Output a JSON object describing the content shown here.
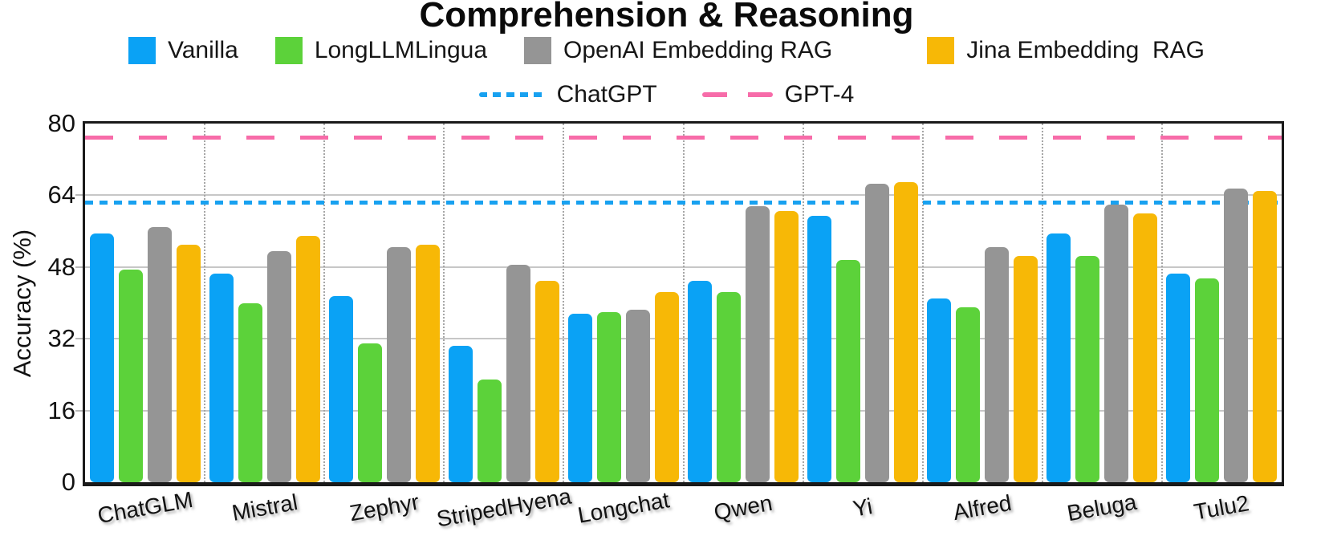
{
  "title": "Comprehension & Reasoning",
  "ylabel": "Accuracy (%)",
  "legend": {
    "series": [
      {
        "label": "Vanilla",
        "color": "#0AA2F5"
      },
      {
        "label": "LongLLMLingua",
        "color": "#5CD23A"
      },
      {
        "label": "OpenAI Embedding RAG",
        "color": "#959595"
      },
      {
        "label": "Jina Embedding  RAG",
        "color": "#F7B806"
      }
    ],
    "lines": [
      {
        "label": "ChatGPT",
        "color": "#18A1F0",
        "style": "dotted"
      },
      {
        "label": "GPT-4",
        "color": "#F76CA9",
        "style": "dashed"
      }
    ]
  },
  "chart_data": {
    "type": "bar",
    "title": "Comprehension & Reasoning",
    "xlabel": "",
    "ylabel": "Accuracy (%)",
    "ylim": [
      0,
      80
    ],
    "yticks": [
      0,
      16,
      32,
      48,
      64,
      80
    ],
    "grid": true,
    "legend_position": "top",
    "categories": [
      "ChatGLM",
      "Mistral",
      "Zephyr",
      "StripedHyena",
      "Longchat",
      "Qwen",
      "Yi",
      "Alfred",
      "Beluga",
      "Tulu2"
    ],
    "series": [
      {
        "name": "Vanilla",
        "color": "#0AA2F5",
        "values": [
          55.5,
          46.5,
          41.5,
          30.5,
          37.5,
          45,
          59.5,
          41,
          55.5,
          46.5
        ]
      },
      {
        "name": "LongLLMLingua",
        "color": "#5CD23A",
        "values": [
          47.5,
          40,
          31,
          23,
          38,
          42.5,
          49.5,
          39,
          50.5,
          45.5
        ]
      },
      {
        "name": "OpenAI Embedding RAG",
        "color": "#959595",
        "values": [
          57,
          51.5,
          52.5,
          48.5,
          38.5,
          61.5,
          66.5,
          52.5,
          62,
          65.5
        ]
      },
      {
        "name": "Jina Embedding  RAG",
        "color": "#F7B806",
        "values": [
          53,
          55,
          53,
          45,
          42.5,
          60.5,
          67,
          50.5,
          60,
          65
        ]
      }
    ],
    "ref_lines": [
      {
        "name": "ChatGPT",
        "value": 62.5,
        "color": "#18A1F0",
        "style": "dotted"
      },
      {
        "name": "GPT-4",
        "value": 77,
        "color": "#F76CA9",
        "style": "dashed"
      }
    ]
  }
}
